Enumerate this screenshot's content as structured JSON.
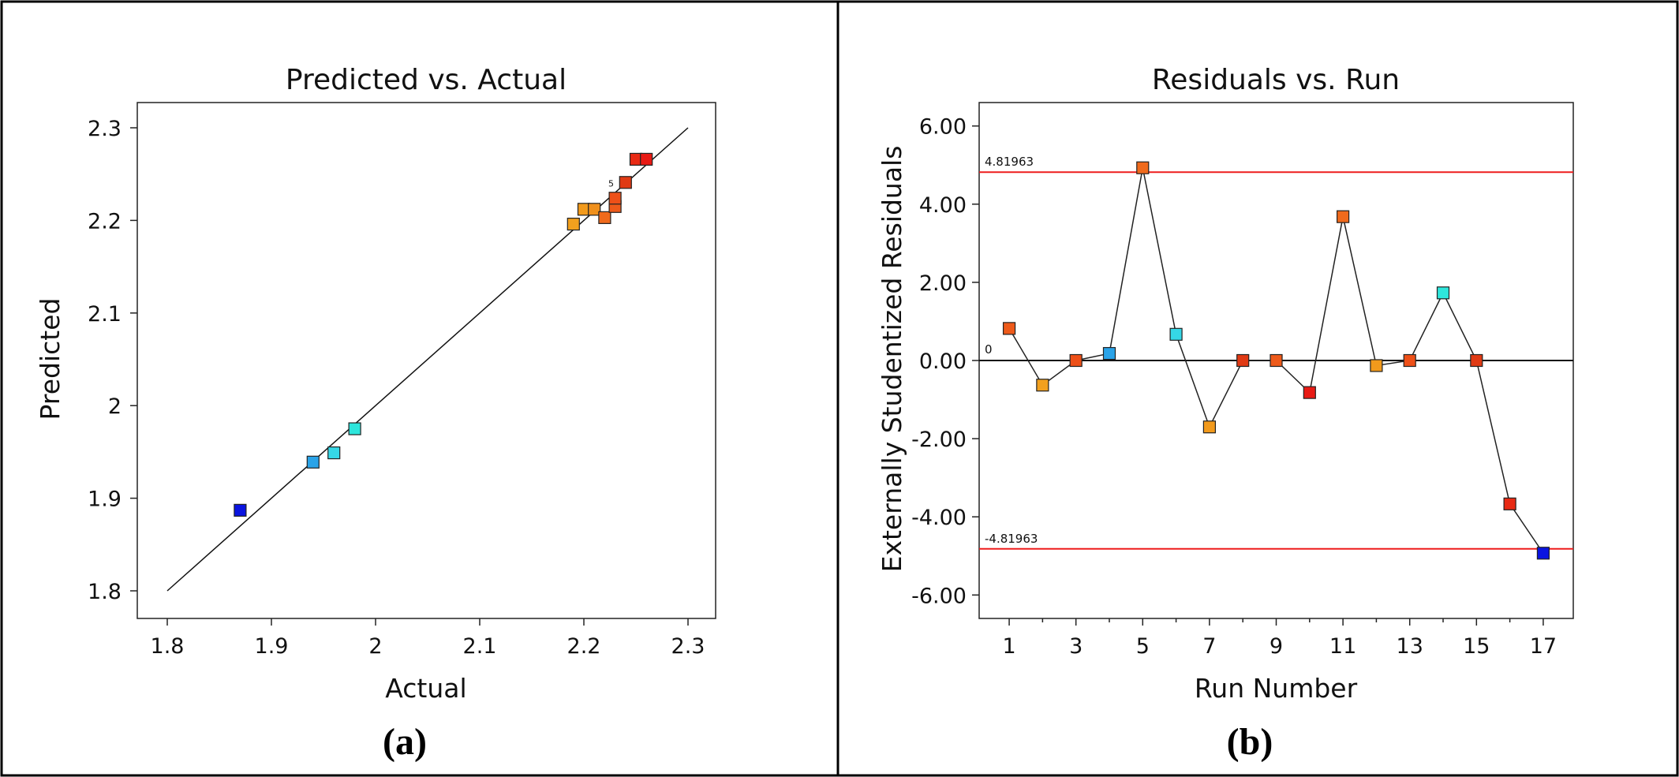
{
  "chart_data": [
    {
      "panel_label": "(a)",
      "type": "scatter",
      "title": "Predicted vs. Actual",
      "xlabel": "Actual",
      "ylabel": "Predicted",
      "xlim": [
        1.8,
        2.3
      ],
      "ylim": [
        1.8,
        2.3
      ],
      "xticks": [
        "1.8",
        "1.9",
        "2",
        "2.1",
        "2.2",
        "2.3"
      ],
      "yticks": [
        "1.8",
        "1.9",
        "2",
        "2.1",
        "2.2",
        "2.3"
      ],
      "reference_line": {
        "type": "y=x",
        "from": [
          1.8,
          1.8
        ],
        "to": [
          2.3,
          2.3
        ]
      },
      "annotation": {
        "text": "5",
        "x": 2.228,
        "y": 2.24
      },
      "points": [
        {
          "x": 1.87,
          "y": 1.887,
          "color": "#0a14e0"
        },
        {
          "x": 1.94,
          "y": 1.939,
          "color": "#2aa3e8"
        },
        {
          "x": 1.96,
          "y": 1.949,
          "color": "#35d7e6"
        },
        {
          "x": 1.98,
          "y": 1.975,
          "color": "#2ee6dc"
        },
        {
          "x": 2.19,
          "y": 2.196,
          "color": "#f2a01e"
        },
        {
          "x": 2.2,
          "y": 2.212,
          "color": "#f29a1c"
        },
        {
          "x": 2.21,
          "y": 2.212,
          "color": "#f0901c"
        },
        {
          "x": 2.22,
          "y": 2.203,
          "color": "#f06a1c"
        },
        {
          "x": 2.23,
          "y": 2.215,
          "color": "#ee5a1a"
        },
        {
          "x": 2.23,
          "y": 2.224,
          "color": "#ee5018"
        },
        {
          "x": 2.24,
          "y": 2.241,
          "color": "#e03a14"
        },
        {
          "x": 2.25,
          "y": 2.266,
          "color": "#e82a14"
        },
        {
          "x": 2.26,
          "y": 2.266,
          "color": "#e81a14"
        }
      ]
    },
    {
      "panel_label": "(b)",
      "type": "line",
      "title": "Residuals vs. Run",
      "xlabel": "Run Number",
      "ylabel": "Externally Studentized Residuals",
      "xlim": [
        0.1,
        17.9
      ],
      "ylim": [
        -6.6,
        6.6
      ],
      "xticks": [
        "1",
        "3",
        "5",
        "7",
        "9",
        "11",
        "13",
        "15",
        "17"
      ],
      "yticks": [
        "6.00",
        "4.00",
        "2.00",
        "0.00",
        "-2.00",
        "-4.00",
        "-6.00"
      ],
      "limits": [
        {
          "value": 4.81963,
          "label": "4.81963",
          "color": "#ee1c1c"
        },
        {
          "value": -4.81963,
          "label": "-4.81963",
          "color": "#ee1c1c"
        }
      ],
      "zero_line": {
        "value": 0,
        "label": "0"
      },
      "x": [
        1,
        2,
        3,
        4,
        5,
        6,
        7,
        8,
        9,
        10,
        11,
        12,
        13,
        14,
        15,
        16,
        17
      ],
      "y": [
        0.82,
        -0.63,
        0.0,
        0.18,
        4.93,
        0.67,
        -1.7,
        0.0,
        0.0,
        -0.82,
        3.68,
        -0.13,
        0.0,
        1.73,
        0.0,
        -3.67,
        -4.93
      ],
      "colors": [
        "#ee5a1a",
        "#f2a01e",
        "#ee5018",
        "#2aa3e8",
        "#f06a1c",
        "#35d7e6",
        "#f29a1c",
        "#e03a14",
        "#ee5a1a",
        "#e81a14",
        "#f06a1c",
        "#f29a1c",
        "#ee5018",
        "#2ee6dc",
        "#e03a14",
        "#e82a14",
        "#0a14e0"
      ]
    }
  ]
}
